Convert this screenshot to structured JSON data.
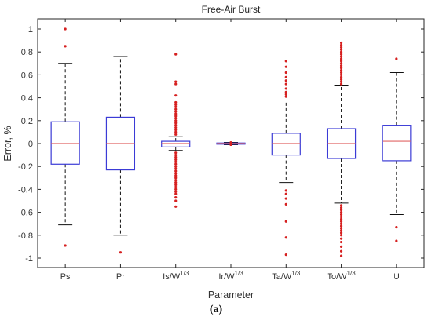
{
  "chart_data": {
    "type": "boxplot",
    "title": "Free-Air Burst",
    "xlabel": "Parameter",
    "ylabel": "Error, %",
    "ylim": [
      -1.05,
      1.05
    ],
    "yticks": [
      1,
      0.8,
      0.6,
      0.4,
      0.2,
      0,
      -0.2,
      -0.4,
      -0.6,
      -0.8,
      -1
    ],
    "ytick_labels": [
      "1",
      "0.8",
      "0.6",
      "0.4",
      "0.2",
      "0",
      "-0.2",
      "-0.4",
      "-0.6",
      "-0.8",
      "-1"
    ],
    "grid": false,
    "colors": {
      "box": "#3b3bd6",
      "median": "#e06666",
      "whisker": "#111111",
      "outlier": "#d62020"
    },
    "categories": [
      {
        "label": "Ps",
        "sup": "",
        "q1": -0.18,
        "median": 0.0,
        "q3": 0.19,
        "wlow": -0.71,
        "whigh": 0.7,
        "outliers": [
          1.0,
          0.85,
          -0.89
        ]
      },
      {
        "label": "Pr",
        "sup": "",
        "q1": -0.23,
        "median": 0.0,
        "q3": 0.23,
        "wlow": -0.8,
        "whigh": 0.76,
        "outliers": [
          -0.95
        ]
      },
      {
        "label": "Is/W",
        "sup": "1/3",
        "q1": -0.03,
        "median": 0.0,
        "q3": 0.02,
        "wlow": -0.06,
        "whigh": 0.06,
        "outliers": [
          0.78,
          0.54,
          0.52,
          0.42,
          0.36,
          0.34,
          0.32,
          0.3,
          0.28,
          0.26,
          0.24,
          0.22,
          0.2,
          0.18,
          0.16,
          0.14,
          0.12,
          0.1,
          0.08,
          -0.08,
          -0.1,
          -0.12,
          -0.14,
          -0.16,
          -0.18,
          -0.2,
          -0.22,
          -0.24,
          -0.26,
          -0.28,
          -0.3,
          -0.32,
          -0.34,
          -0.36,
          -0.38,
          -0.4,
          -0.42,
          -0.44,
          -0.47,
          -0.5,
          -0.55
        ]
      },
      {
        "label": "Ir/W",
        "sup": "1/3",
        "q1": -0.005,
        "median": 0.0,
        "q3": 0.005,
        "wlow": -0.01,
        "whigh": 0.01,
        "outliers": [
          0.01,
          -0.01
        ]
      },
      {
        "label": "Ta/W",
        "sup": "1/3",
        "q1": -0.1,
        "median": 0.0,
        "q3": 0.09,
        "wlow": -0.34,
        "whigh": 0.38,
        "outliers": [
          0.72,
          0.67,
          0.62,
          0.58,
          0.55,
          0.52,
          0.48,
          0.45,
          0.43,
          0.41,
          -0.41,
          -0.44,
          -0.48,
          -0.53,
          -0.68,
          -0.82,
          -0.97
        ]
      },
      {
        "label": "To/W",
        "sup": "1/3",
        "q1": -0.13,
        "median": 0.0,
        "q3": 0.13,
        "wlow": -0.52,
        "whigh": 0.51,
        "outliers": [
          0.88,
          0.86,
          0.84,
          0.82,
          0.8,
          0.78,
          0.76,
          0.74,
          0.72,
          0.7,
          0.68,
          0.66,
          0.64,
          0.62,
          0.6,
          0.58,
          0.56,
          0.54,
          0.52,
          -0.54,
          -0.56,
          -0.58,
          -0.6,
          -0.62,
          -0.64,
          -0.66,
          -0.68,
          -0.7,
          -0.72,
          -0.74,
          -0.76,
          -0.78,
          -0.8,
          -0.83,
          -0.86,
          -0.9,
          -0.94,
          -0.98
        ]
      },
      {
        "label": "U",
        "sup": "",
        "q1": -0.15,
        "median": 0.02,
        "q3": 0.16,
        "wlow": -0.62,
        "whigh": 0.62,
        "outliers": [
          0.74,
          -0.73,
          -0.85
        ]
      }
    ]
  },
  "caption": "(a)"
}
